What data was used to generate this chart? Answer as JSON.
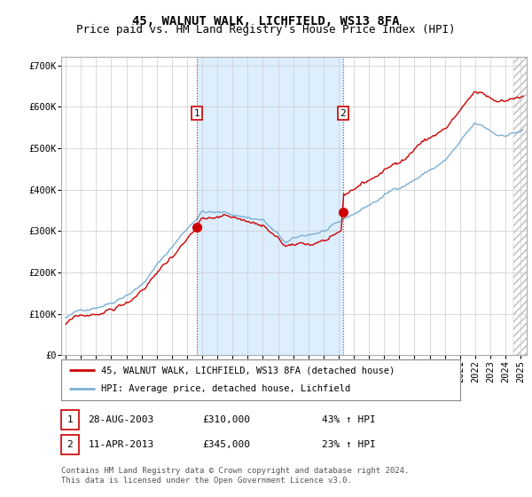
{
  "title": "45, WALNUT WALK, LICHFIELD, WS13 8FA",
  "subtitle": "Price paid vs. HM Land Registry's House Price Index (HPI)",
  "ylabel_ticks": [
    "£0",
    "£100K",
    "£200K",
    "£300K",
    "£400K",
    "£500K",
    "£600K",
    "£700K"
  ],
  "ytick_values": [
    0,
    100000,
    200000,
    300000,
    400000,
    500000,
    600000,
    700000
  ],
  "ylim": [
    0,
    720000
  ],
  "xlim_start": 1994.7,
  "xlim_end": 2025.4,
  "marker1_x": 2003.65,
  "marker1_y": 310000,
  "marker2_x": 2013.28,
  "marker2_y": 345000,
  "legend_line1": "45, WALNUT WALK, LICHFIELD, WS13 8FA (detached house)",
  "legend_line2": "HPI: Average price, detached house, Lichfield",
  "table_row1": [
    "1",
    "28-AUG-2003",
    "£310,000",
    "43% ↑ HPI"
  ],
  "table_row2": [
    "2",
    "11-APR-2013",
    "£345,000",
    "23% ↑ HPI"
  ],
  "footnote": "Contains HM Land Registry data © Crown copyright and database right 2024.\nThis data is licensed under the Open Government Licence v3.0.",
  "hpi_color": "#7bafd4",
  "price_color": "#cc0000",
  "vline_color": "#cc0000",
  "shade_color": "#ddeeff",
  "plot_bg_color": "#ffffff",
  "grid_color": "#cccccc",
  "title_fontsize": 10,
  "subtitle_fontsize": 9,
  "tick_fontsize": 7.5
}
